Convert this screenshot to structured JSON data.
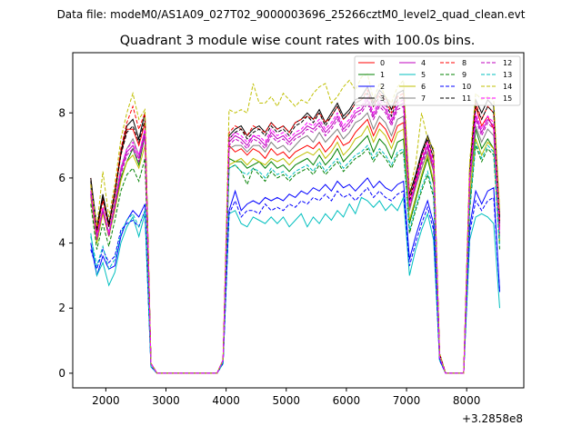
{
  "figure": {
    "suptitle": "Data file: modeM0/AS1A09_027T02_9000003696_25266cztM0_level2_quad_clean.evt"
  },
  "chart_data": {
    "type": "line",
    "title": "Quadrant 3 module wise count rates with 100.0s bins.",
    "xlabel": "",
    "ylabel": "",
    "x_offset_label": "+3.2858e8",
    "xlim": [
      1450,
      8950
    ],
    "ylim": [
      -0.45,
      9.85
    ],
    "xticks": [
      2000,
      3000,
      4000,
      5000,
      6000,
      7000,
      8000
    ],
    "yticks": [
      0,
      2,
      4,
      6,
      8
    ],
    "legend_position": "top-right",
    "x": [
      1750,
      1850,
      1950,
      2050,
      2150,
      2250,
      2350,
      2450,
      2550,
      2650,
      2750,
      2850,
      2950,
      3050,
      3150,
      3250,
      3350,
      3450,
      3550,
      3650,
      3750,
      3850,
      3950,
      4050,
      4150,
      4250,
      4350,
      4450,
      4550,
      4650,
      4750,
      4850,
      4950,
      5050,
      5150,
      5250,
      5350,
      5450,
      5550,
      5650,
      5750,
      5850,
      5950,
      6050,
      6150,
      6250,
      6350,
      6450,
      6550,
      6650,
      6750,
      6850,
      6950,
      7050,
      7150,
      7250,
      7350,
      7450,
      7550,
      7650,
      7750,
      7850,
      7950,
      8050,
      8150,
      8250,
      8350,
      8450,
      8550
    ],
    "series": [
      {
        "name": "0",
        "color": "#ff0000",
        "dash": "solid",
        "values": [
          6.0,
          4.3,
          5.4,
          4.5,
          5.5,
          6.7,
          7.5,
          7.5,
          7.0,
          7.7,
          0.3,
          0.0,
          0.0,
          0.0,
          0.0,
          0.0,
          0.0,
          0.0,
          0.0,
          0.0,
          0.0,
          0.0,
          0.4,
          7.0,
          6.8,
          6.9,
          6.7,
          6.9,
          6.8,
          6.6,
          6.9,
          6.7,
          6.8,
          6.6,
          6.8,
          6.9,
          7.0,
          6.9,
          7.1,
          6.8,
          7.0,
          7.3,
          7.0,
          7.1,
          7.4,
          7.6,
          7.8,
          7.3,
          7.7,
          7.5,
          7.1,
          7.6,
          7.7,
          5.0,
          5.8,
          6.5,
          7.0,
          6.2,
          0.6,
          0.0,
          0.0,
          0.0,
          0.0,
          5.8,
          8.2,
          7.6,
          7.9,
          7.5,
          4.5
        ]
      },
      {
        "name": "1",
        "color": "#008000",
        "dash": "solid",
        "values": [
          5.5,
          4.0,
          5.0,
          4.2,
          5.1,
          6.0,
          6.5,
          6.9,
          6.4,
          7.3,
          0.3,
          0.0,
          0.0,
          0.0,
          0.0,
          0.0,
          0.0,
          0.0,
          0.0,
          0.0,
          0.0,
          0.0,
          0.4,
          6.6,
          6.5,
          6.5,
          6.3,
          6.4,
          6.5,
          6.3,
          6.5,
          6.3,
          6.4,
          6.2,
          6.4,
          6.5,
          6.6,
          6.4,
          6.7,
          6.4,
          6.6,
          6.9,
          6.5,
          6.7,
          6.9,
          7.1,
          7.3,
          6.8,
          7.2,
          7.0,
          6.6,
          7.1,
          7.2,
          4.6,
          5.3,
          6.0,
          6.6,
          5.8,
          0.5,
          0.0,
          0.0,
          0.0,
          0.0,
          5.3,
          7.5,
          6.9,
          7.2,
          6.9,
          4.0
        ]
      },
      {
        "name": "2",
        "color": "#0000ff",
        "dash": "solid",
        "values": [
          4.0,
          3.0,
          3.6,
          3.2,
          3.3,
          4.2,
          4.7,
          5.0,
          4.8,
          5.2,
          0.2,
          0.0,
          0.0,
          0.0,
          0.0,
          0.0,
          0.0,
          0.0,
          0.0,
          0.0,
          0.0,
          0.0,
          0.3,
          5.0,
          5.6,
          5.0,
          5.2,
          5.3,
          5.2,
          5.4,
          5.3,
          5.4,
          5.3,
          5.5,
          5.4,
          5.6,
          5.5,
          5.7,
          5.6,
          5.8,
          5.6,
          5.9,
          5.7,
          5.8,
          5.6,
          5.8,
          6.0,
          5.7,
          5.9,
          5.7,
          5.6,
          5.8,
          5.9,
          3.5,
          4.2,
          4.8,
          5.3,
          4.6,
          0.4,
          0.0,
          0.0,
          0.0,
          0.0,
          4.5,
          5.6,
          5.2,
          5.6,
          5.7,
          2.5
        ]
      },
      {
        "name": "3",
        "color": "#000000",
        "dash": "solid",
        "values": [
          6.0,
          4.5,
          5.5,
          4.6,
          5.6,
          6.8,
          7.6,
          7.8,
          7.2,
          8.0,
          0.3,
          0.0,
          0.0,
          0.0,
          0.0,
          0.0,
          0.0,
          0.0,
          0.0,
          0.0,
          0.0,
          0.0,
          0.4,
          7.3,
          7.5,
          7.6,
          7.3,
          7.5,
          7.6,
          7.4,
          7.7,
          7.5,
          7.6,
          7.4,
          7.7,
          7.8,
          8.0,
          7.8,
          8.1,
          7.7,
          8.0,
          8.3,
          7.9,
          8.1,
          8.4,
          8.5,
          8.8,
          8.3,
          8.7,
          8.5,
          8.1,
          8.6,
          8.7,
          5.5,
          6.1,
          6.8,
          7.3,
          6.8,
          0.6,
          0.0,
          0.0,
          0.0,
          0.0,
          6.3,
          8.4,
          8.0,
          8.4,
          8.2,
          4.8
        ]
      },
      {
        "name": "4",
        "color": "#bf00bf",
        "dash": "solid",
        "values": [
          5.6,
          4.1,
          5.0,
          4.3,
          5.2,
          6.2,
          6.8,
          7.0,
          6.6,
          7.4,
          0.3,
          0.0,
          0.0,
          0.0,
          0.0,
          0.0,
          0.0,
          0.0,
          0.0,
          0.0,
          0.0,
          0.0,
          0.4,
          7.1,
          7.3,
          7.2,
          7.0,
          7.3,
          7.2,
          7.0,
          7.4,
          7.2,
          7.3,
          7.1,
          7.3,
          7.4,
          7.6,
          7.5,
          7.7,
          7.4,
          7.6,
          7.9,
          7.5,
          7.7,
          8.0,
          8.1,
          8.4,
          7.9,
          8.3,
          8.1,
          7.7,
          8.2,
          8.3,
          5.2,
          5.9,
          6.5,
          7.0,
          6.4,
          0.5,
          0.0,
          0.0,
          0.0,
          0.0,
          6.0,
          7.9,
          7.4,
          7.8,
          7.6,
          4.4
        ]
      },
      {
        "name": "5",
        "color": "#00bfbf",
        "dash": "solid",
        "values": [
          4.3,
          3.0,
          3.4,
          2.7,
          3.1,
          4.0,
          4.5,
          4.8,
          4.2,
          4.9,
          0.2,
          0.0,
          0.0,
          0.0,
          0.0,
          0.0,
          0.0,
          0.0,
          0.0,
          0.0,
          0.0,
          0.0,
          0.3,
          4.9,
          5.0,
          4.6,
          4.5,
          4.8,
          4.7,
          4.6,
          4.8,
          4.6,
          4.8,
          4.5,
          4.7,
          4.9,
          4.5,
          4.8,
          4.6,
          4.9,
          4.7,
          5.0,
          4.8,
          5.2,
          4.9,
          5.4,
          5.3,
          5.1,
          5.3,
          5.0,
          5.2,
          5.0,
          5.4,
          3.0,
          3.8,
          4.4,
          4.9,
          4.1,
          0.4,
          0.0,
          0.0,
          0.0,
          0.0,
          4.1,
          4.8,
          4.9,
          4.8,
          4.6,
          2.0
        ]
      },
      {
        "name": "6",
        "color": "#bfbf00",
        "dash": "solid",
        "values": [
          5.4,
          4.0,
          4.9,
          4.2,
          5.0,
          5.9,
          6.5,
          6.7,
          6.3,
          7.0,
          0.3,
          0.0,
          0.0,
          0.0,
          0.0,
          0.0,
          0.0,
          0.0,
          0.0,
          0.0,
          0.0,
          0.0,
          0.4,
          6.4,
          6.5,
          6.6,
          6.4,
          6.6,
          6.5,
          6.4,
          6.6,
          6.5,
          6.6,
          6.4,
          6.6,
          6.7,
          6.8,
          6.7,
          6.9,
          6.6,
          6.8,
          7.1,
          6.7,
          6.9,
          7.2,
          7.3,
          7.6,
          7.1,
          7.5,
          7.3,
          6.9,
          7.4,
          7.5,
          4.7,
          5.4,
          6.1,
          6.7,
          5.9,
          0.5,
          0.0,
          0.0,
          0.0,
          0.0,
          5.5,
          7.2,
          6.7,
          7.1,
          6.9,
          4.0
        ]
      },
      {
        "name": "7",
        "color": "#808080",
        "dash": "solid",
        "values": [
          5.7,
          4.2,
          5.1,
          4.3,
          5.3,
          6.3,
          6.9,
          7.2,
          6.7,
          7.5,
          0.3,
          0.0,
          0.0,
          0.0,
          0.0,
          0.0,
          0.0,
          0.0,
          0.0,
          0.0,
          0.0,
          0.0,
          0.4,
          6.9,
          7.0,
          7.0,
          6.8,
          7.0,
          7.0,
          6.8,
          7.1,
          6.9,
          7.0,
          6.8,
          7.0,
          7.2,
          7.3,
          7.1,
          7.4,
          7.1,
          7.3,
          7.5,
          7.2,
          7.4,
          7.7,
          7.8,
          8.0,
          7.5,
          7.9,
          7.7,
          7.3,
          7.8,
          7.9,
          5.0,
          5.7,
          6.3,
          6.8,
          6.2,
          0.5,
          0.0,
          0.0,
          0.0,
          0.0,
          5.8,
          7.6,
          7.1,
          7.5,
          7.3,
          4.2
        ]
      },
      {
        "name": "8",
        "color": "#ff0000",
        "dash": "dashed",
        "values": [
          5.8,
          4.4,
          5.3,
          4.5,
          5.6,
          6.9,
          7.7,
          8.2,
          7.5,
          8.0,
          0.3,
          0.0,
          0.0,
          0.0,
          0.0,
          0.0,
          0.0,
          0.0,
          0.0,
          0.0,
          0.0,
          0.0,
          0.4,
          7.4,
          7.6,
          7.5,
          7.3,
          7.6,
          7.5,
          7.4,
          7.7,
          7.5,
          7.6,
          7.4,
          7.7,
          7.8,
          7.9,
          7.8,
          8.0,
          7.7,
          7.9,
          8.2,
          7.8,
          8.0,
          8.3,
          8.4,
          8.7,
          8.2,
          8.6,
          8.4,
          8.0,
          8.5,
          8.6,
          5.4,
          6.0,
          6.7,
          7.2,
          6.6,
          0.6,
          0.0,
          0.0,
          0.0,
          0.0,
          6.2,
          8.3,
          7.8,
          8.2,
          8.0,
          4.7
        ]
      },
      {
        "name": "9",
        "color": "#008000",
        "dash": "dashed",
        "values": [
          5.2,
          3.8,
          4.6,
          3.9,
          4.7,
          5.6,
          6.1,
          6.3,
          5.9,
          6.6,
          0.3,
          0.0,
          0.0,
          0.0,
          0.0,
          0.0,
          0.0,
          0.0,
          0.0,
          0.0,
          0.0,
          0.0,
          0.4,
          6.3,
          6.4,
          6.2,
          5.8,
          6.3,
          6.1,
          5.9,
          6.2,
          6.0,
          6.1,
          5.9,
          6.1,
          6.2,
          6.3,
          6.1,
          6.4,
          6.1,
          6.3,
          6.5,
          6.2,
          6.4,
          6.6,
          6.7,
          6.9,
          6.5,
          6.8,
          6.6,
          6.3,
          6.7,
          6.8,
          4.3,
          5.0,
          5.6,
          6.1,
          5.4,
          0.5,
          0.0,
          0.0,
          0.0,
          0.0,
          5.0,
          7.0,
          6.5,
          6.9,
          6.7,
          3.8
        ]
      },
      {
        "name": "10",
        "color": "#0000ff",
        "dash": "dashed",
        "values": [
          3.8,
          3.2,
          3.8,
          3.4,
          3.6,
          4.4,
          4.6,
          4.7,
          4.5,
          5.0,
          0.2,
          0.0,
          0.0,
          0.0,
          0.0,
          0.0,
          0.0,
          0.0,
          0.0,
          0.0,
          0.0,
          0.0,
          0.3,
          4.9,
          5.3,
          4.8,
          5.0,
          5.0,
          4.9,
          5.2,
          5.0,
          5.1,
          5.0,
          5.2,
          5.1,
          5.3,
          5.2,
          5.4,
          5.3,
          5.5,
          5.3,
          5.6,
          5.4,
          5.5,
          5.3,
          5.5,
          5.7,
          5.4,
          5.6,
          5.4,
          5.3,
          5.5,
          5.6,
          3.3,
          4.0,
          4.6,
          5.1,
          4.4,
          0.4,
          0.0,
          0.0,
          0.0,
          0.0,
          4.3,
          5.3,
          5.0,
          5.3,
          5.4,
          2.5
        ]
      },
      {
        "name": "11",
        "color": "#000000",
        "dash": "dashed",
        "values": [
          5.9,
          4.4,
          5.4,
          4.5,
          5.5,
          6.7,
          7.4,
          7.6,
          7.1,
          7.8,
          0.3,
          0.0,
          0.0,
          0.0,
          0.0,
          0.0,
          0.0,
          0.0,
          0.0,
          0.0,
          0.0,
          0.0,
          0.4,
          7.2,
          7.4,
          7.5,
          7.2,
          7.4,
          7.5,
          7.3,
          7.6,
          7.4,
          7.5,
          7.3,
          7.6,
          7.7,
          7.9,
          7.7,
          8.0,
          7.6,
          7.9,
          8.2,
          7.8,
          8.0,
          8.3,
          8.4,
          8.6,
          8.2,
          8.5,
          8.3,
          7.9,
          8.4,
          8.5,
          5.3,
          6.0,
          6.7,
          7.2,
          6.6,
          0.6,
          0.0,
          0.0,
          0.0,
          0.0,
          6.2,
          8.2,
          7.8,
          8.2,
          8.0,
          4.6
        ]
      },
      {
        "name": "12",
        "color": "#bf00bf",
        "dash": "dashed",
        "values": [
          5.5,
          4.1,
          5.0,
          4.2,
          5.1,
          6.1,
          6.7,
          6.9,
          6.5,
          7.3,
          0.3,
          0.0,
          0.0,
          0.0,
          0.0,
          0.0,
          0.0,
          0.0,
          0.0,
          0.0,
          0.0,
          0.0,
          0.4,
          7.0,
          7.2,
          7.1,
          6.9,
          7.2,
          7.1,
          6.9,
          7.3,
          7.1,
          7.2,
          7.0,
          7.2,
          7.3,
          7.5,
          7.4,
          7.6,
          7.3,
          7.5,
          7.8,
          7.4,
          7.6,
          7.9,
          8.0,
          8.3,
          7.8,
          8.2,
          8.0,
          7.6,
          8.1,
          8.2,
          5.1,
          5.8,
          6.4,
          6.9,
          6.3,
          0.5,
          0.0,
          0.0,
          0.0,
          0.0,
          5.9,
          7.8,
          7.3,
          7.7,
          7.5,
          4.3
        ]
      },
      {
        "name": "13",
        "color": "#00bfbf",
        "dash": "dashed",
        "values": [
          4.2,
          3.3,
          3.9,
          3.2,
          3.5,
          4.3,
          4.7,
          4.9,
          4.5,
          5.0,
          0.2,
          0.0,
          0.0,
          0.0,
          0.0,
          0.0,
          0.0,
          0.0,
          0.0,
          0.0,
          0.0,
          0.0,
          0.3,
          6.3,
          6.4,
          6.2,
          6.1,
          6.3,
          6.2,
          6.0,
          6.3,
          6.1,
          6.2,
          6.0,
          6.2,
          6.3,
          6.4,
          6.2,
          6.5,
          6.2,
          6.4,
          6.6,
          6.3,
          6.5,
          6.7,
          6.8,
          7.0,
          6.6,
          6.9,
          6.7,
          6.4,
          6.8,
          6.9,
          4.4,
          5.1,
          5.7,
          6.2,
          5.5,
          0.5,
          0.0,
          0.0,
          0.0,
          0.0,
          5.1,
          7.1,
          6.6,
          7.0,
          6.8,
          3.9
        ]
      },
      {
        "name": "14",
        "color": "#bfbf00",
        "dash": "dashed",
        "values": [
          5.8,
          4.5,
          6.2,
          4.8,
          5.8,
          7.2,
          8.0,
          8.6,
          7.8,
          8.1,
          0.3,
          0.0,
          0.0,
          0.0,
          0.0,
          0.0,
          0.0,
          0.0,
          0.0,
          0.0,
          0.0,
          0.0,
          0.4,
          8.1,
          8.0,
          8.1,
          8.0,
          8.9,
          8.3,
          8.3,
          8.5,
          8.2,
          8.6,
          8.4,
          8.2,
          8.4,
          8.3,
          8.6,
          8.8,
          8.9,
          8.3,
          8.5,
          8.8,
          9.0,
          8.7,
          9.1,
          9.2,
          8.4,
          8.9,
          8.5,
          8.3,
          8.8,
          9.0,
          5.6,
          6.4,
          8.0,
          7.2,
          6.9,
          0.6,
          0.0,
          0.0,
          0.0,
          0.0,
          6.5,
          8.6,
          8.4,
          8.5,
          8.4,
          5.0
        ]
      },
      {
        "name": "15",
        "color": "#ff00ff",
        "dash": "dashed",
        "values": [
          5.6,
          4.2,
          5.1,
          4.3,
          5.2,
          6.3,
          6.9,
          7.1,
          6.7,
          7.5,
          0.3,
          0.0,
          0.0,
          0.0,
          0.0,
          0.0,
          0.0,
          0.0,
          0.0,
          0.0,
          0.0,
          0.0,
          0.4,
          7.2,
          7.4,
          7.3,
          7.1,
          7.3,
          7.3,
          7.1,
          7.5,
          7.3,
          7.4,
          7.2,
          7.4,
          7.5,
          7.7,
          7.6,
          7.8,
          7.5,
          7.7,
          8.0,
          7.6,
          7.8,
          8.1,
          8.2,
          8.5,
          8.0,
          8.4,
          8.2,
          7.8,
          8.3,
          8.4,
          5.2,
          5.9,
          6.6,
          7.1,
          6.5,
          0.5,
          0.0,
          0.0,
          0.0,
          0.0,
          6.0,
          8.0,
          7.5,
          7.9,
          7.7,
          4.4
        ]
      }
    ]
  }
}
